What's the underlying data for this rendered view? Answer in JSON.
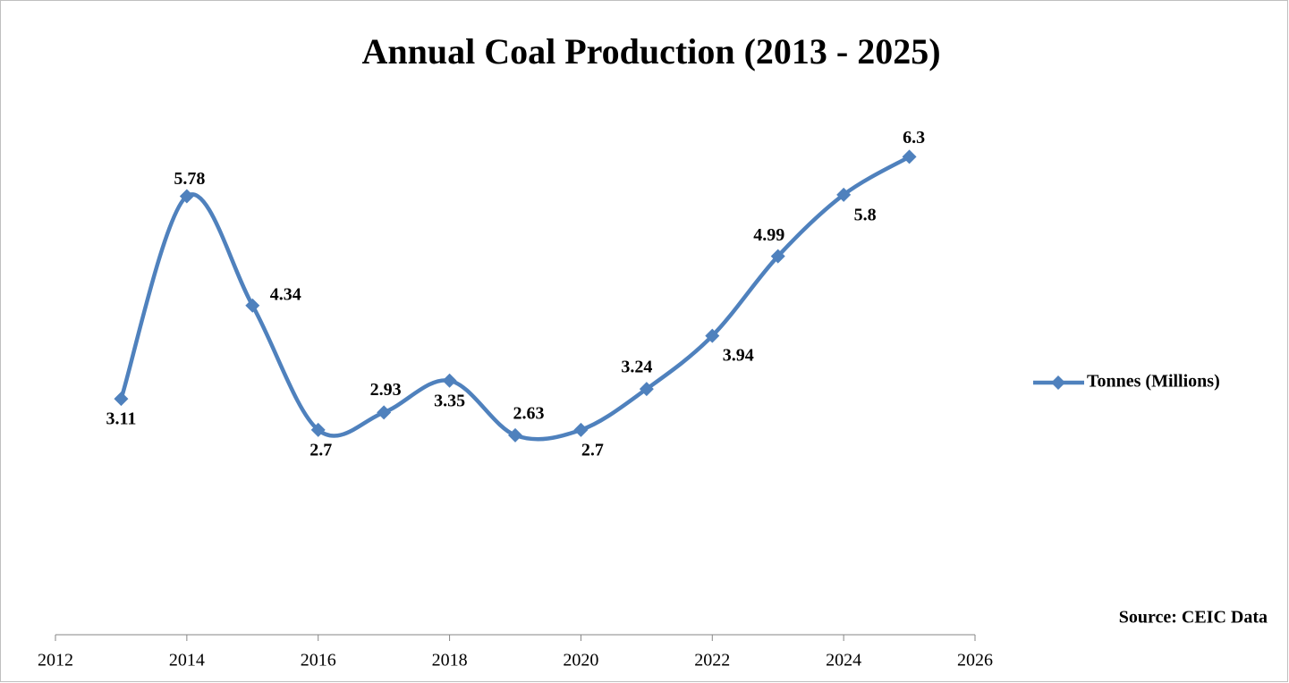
{
  "chart_data": {
    "type": "line",
    "title": "Annual Coal Production (2013 - 2025)",
    "x": [
      2013,
      2014,
      2015,
      2016,
      2017,
      2018,
      2019,
      2020,
      2021,
      2022,
      2023,
      2024,
      2025
    ],
    "series": [
      {
        "name": "Tonnes (Millions)",
        "color": "#4f81bd",
        "values": [
          3.11,
          5.78,
          4.34,
          2.7,
          2.93,
          3.35,
          2.63,
          2.7,
          3.24,
          3.94,
          4.99,
          5.8,
          6.3
        ]
      }
    ],
    "xlim": [
      2012,
      2026
    ],
    "xticks": [
      2012,
      2014,
      2016,
      2018,
      2020,
      2022,
      2024,
      2026
    ],
    "ylim": [
      0,
      7
    ],
    "smooth": true,
    "legend": "right",
    "annotation": "Source: CEIC Data"
  }
}
